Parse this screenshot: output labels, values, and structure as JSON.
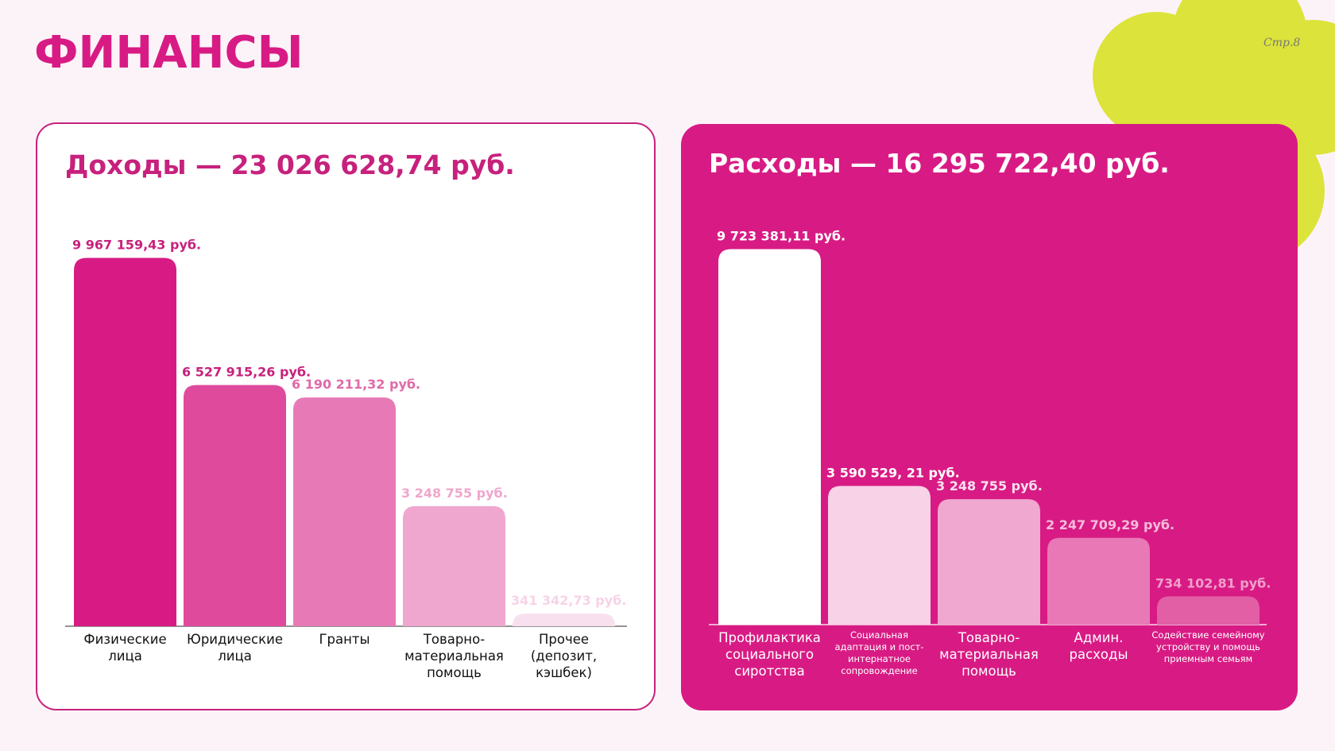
{
  "page": {
    "title": "ФИНАНСЫ",
    "page_number": "Стр.8",
    "accent_color": "#d81b84",
    "flower_color": "#dce33a"
  },
  "income": {
    "title": "Доходы — 23 026 628,74 руб."
  },
  "expenses": {
    "title": "Расходы — 16 295 722,40 руб."
  },
  "chart_data": [
    {
      "type": "bar",
      "title": "Доходы — 23 026 628,74 руб.",
      "categories": [
        [
          "Физические",
          "лица"
        ],
        [
          "Юридические",
          "лица"
        ],
        [
          "Гранты"
        ],
        [
          "Товарно-",
          "материальная",
          "помощь"
        ],
        [
          "Прочее",
          "(депозит,",
          "кэшбек)"
        ]
      ],
      "values": [
        9967159.43,
        6527915.26,
        6190211.32,
        3248755,
        341342.73
      ],
      "value_labels": [
        "9 967 159,43 руб.",
        "6 527 915,26 руб.",
        "6 190 211,32 руб.",
        "3 248 755 руб.",
        "341 342,73 руб."
      ],
      "colors": [
        "#d81b84",
        "#df4a9d",
        "#e77ab6",
        "#efa7cf",
        "#f9e0ee"
      ],
      "label_colors": [
        "#c7217d",
        "#c7217d",
        "#e06aa9",
        "#f0a6cc",
        "#f7d3e6"
      ],
      "ylim": [
        0,
        10000000
      ]
    },
    {
      "type": "bar",
      "title": "Расходы — 16 295 722,40 руб.",
      "categories": [
        [
          "Профилактика",
          "социального",
          "сиротства"
        ],
        [
          "Социальная",
          "адаптация и пост-",
          "интернатное",
          "сопровождение"
        ],
        [
          "Товарно-",
          "материальная",
          "помощь"
        ],
        [
          "Админ.",
          "расходы"
        ],
        [
          "Содействие семейному",
          "устройству и помощь",
          "приемным семьям"
        ]
      ],
      "small_label": [
        false,
        true,
        false,
        false,
        true
      ],
      "values": [
        9723381.11,
        3590529.21,
        3248755,
        2247709.29,
        734102.81
      ],
      "value_labels": [
        "9 723 381,11 руб.",
        "3 590 529, 21 руб.",
        "3 248 755 руб.",
        "2 247 709,29 руб.",
        "734 102,81 руб."
      ],
      "colors": [
        "#ffffff",
        "#f8d2e7",
        "#f0a8d0",
        "#e878b6",
        "#e25ea5"
      ],
      "label_colors": [
        "#ffffff",
        "#ffffff",
        "#fbe0ef",
        "#f5bcdc",
        "#f0a0cb"
      ],
      "ylim": [
        0,
        10000000
      ]
    }
  ]
}
